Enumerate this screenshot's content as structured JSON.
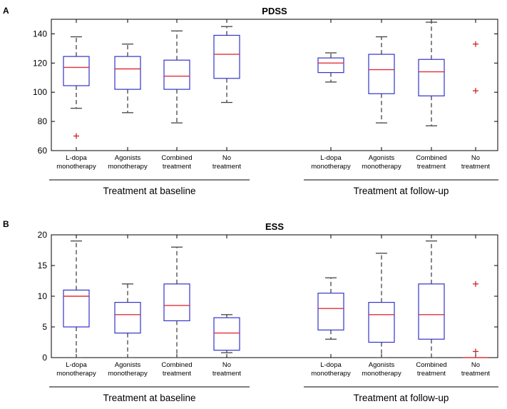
{
  "figure": {
    "panel_letters": [
      "A",
      "B"
    ]
  },
  "chart_data": [
    {
      "type": "box",
      "title": "PDSS",
      "ylim": [
        60,
        150
      ],
      "yticks": [
        60,
        80,
        100,
        120,
        140
      ],
      "categories": [
        [
          "L-dopa",
          "monotherapy"
        ],
        [
          "Agonists",
          "monotherapy"
        ],
        [
          "Combined",
          "treatment"
        ],
        [
          "No",
          "treatment"
        ],
        [
          "L-dopa",
          "monotherapy"
        ],
        [
          "Agonists",
          "monotherapy"
        ],
        [
          "Combined",
          "treatment"
        ],
        [
          "No",
          "treatment"
        ]
      ],
      "groups": [
        {
          "label": "Treatment at baseline",
          "categories": [
            0,
            1,
            2,
            3
          ]
        },
        {
          "label": "Treatment at follow-up",
          "categories": [
            4,
            5,
            6,
            7
          ]
        }
      ],
      "boxes": [
        {
          "whisker_low": 89,
          "q1": 104.5,
          "median": 117,
          "q3": 124.5,
          "whisker_high": 138,
          "outliers": [
            70
          ]
        },
        {
          "whisker_low": 86,
          "q1": 102,
          "median": 116,
          "q3": 124.5,
          "whisker_high": 133,
          "outliers": []
        },
        {
          "whisker_low": 79,
          "q1": 102,
          "median": 111,
          "q3": 122,
          "whisker_high": 142,
          "outliers": []
        },
        {
          "whisker_low": 93,
          "q1": 109.5,
          "median": 126,
          "q3": 139,
          "whisker_high": 145,
          "outliers": []
        },
        {
          "whisker_low": 107,
          "q1": 113.5,
          "median": 120,
          "q3": 123.5,
          "whisker_high": 127,
          "outliers": []
        },
        {
          "whisker_low": 79,
          "q1": 99,
          "median": 115.5,
          "q3": 126,
          "whisker_high": 138,
          "outliers": []
        },
        {
          "whisker_low": 77,
          "q1": 97.5,
          "median": 114,
          "q3": 122.5,
          "whisker_high": 148,
          "outliers": []
        },
        {
          "whisker_low": null,
          "q1": null,
          "median": null,
          "q3": null,
          "whisker_high": null,
          "outliers": [
            133,
            101
          ]
        }
      ]
    },
    {
      "type": "box",
      "title": "ESS",
      "ylim": [
        0,
        20
      ],
      "yticks": [
        0,
        5,
        10,
        15,
        20
      ],
      "categories": [
        [
          "L-dopa",
          "monotherapy"
        ],
        [
          "Agonists",
          "monotherapy"
        ],
        [
          "Combined",
          "treatment"
        ],
        [
          "No",
          "treatment"
        ],
        [
          "L-dopa",
          "monotherapy"
        ],
        [
          "Agonists",
          "monotherapy"
        ],
        [
          "Combined",
          "treatment"
        ],
        [
          "No",
          "treatment"
        ]
      ],
      "groups": [
        {
          "label": "Treatment at baseline",
          "categories": [
            0,
            1,
            2,
            3
          ]
        },
        {
          "label": "Treatment at follow-up",
          "categories": [
            4,
            5,
            6,
            7
          ]
        }
      ],
      "boxes": [
        {
          "whisker_low": 0,
          "q1": 5,
          "median": 10,
          "q3": 11,
          "whisker_high": 19,
          "outliers": []
        },
        {
          "whisker_low": 0,
          "q1": 4,
          "median": 7,
          "q3": 9,
          "whisker_high": 12,
          "outliers": []
        },
        {
          "whisker_low": 0,
          "q1": 6,
          "median": 8.5,
          "q3": 12,
          "whisker_high": 18,
          "outliers": []
        },
        {
          "whisker_low": 0.8,
          "q1": 1.2,
          "median": 4,
          "q3": 6.5,
          "whisker_high": 7,
          "outliers": []
        },
        {
          "whisker_low": 3,
          "q1": 4.5,
          "median": 8,
          "q3": 10.5,
          "whisker_high": 13,
          "outliers": []
        },
        {
          "whisker_low": 0,
          "q1": 2.5,
          "median": 7,
          "q3": 9,
          "whisker_high": 17,
          "outliers": []
        },
        {
          "whisker_low": 0,
          "q1": 3,
          "median": 7,
          "q3": 12,
          "whisker_high": 19,
          "outliers": []
        },
        {
          "whisker_low": 0,
          "q1": 0,
          "median": 0,
          "q3": 0,
          "whisker_high": 0,
          "outliers": [
            12,
            1
          ]
        }
      ]
    }
  ],
  "colors": {
    "box": "#3333cc",
    "median": "#e0303a",
    "whisker": "#444444",
    "outlier": "#cc2222",
    "axis": "#000000"
  }
}
